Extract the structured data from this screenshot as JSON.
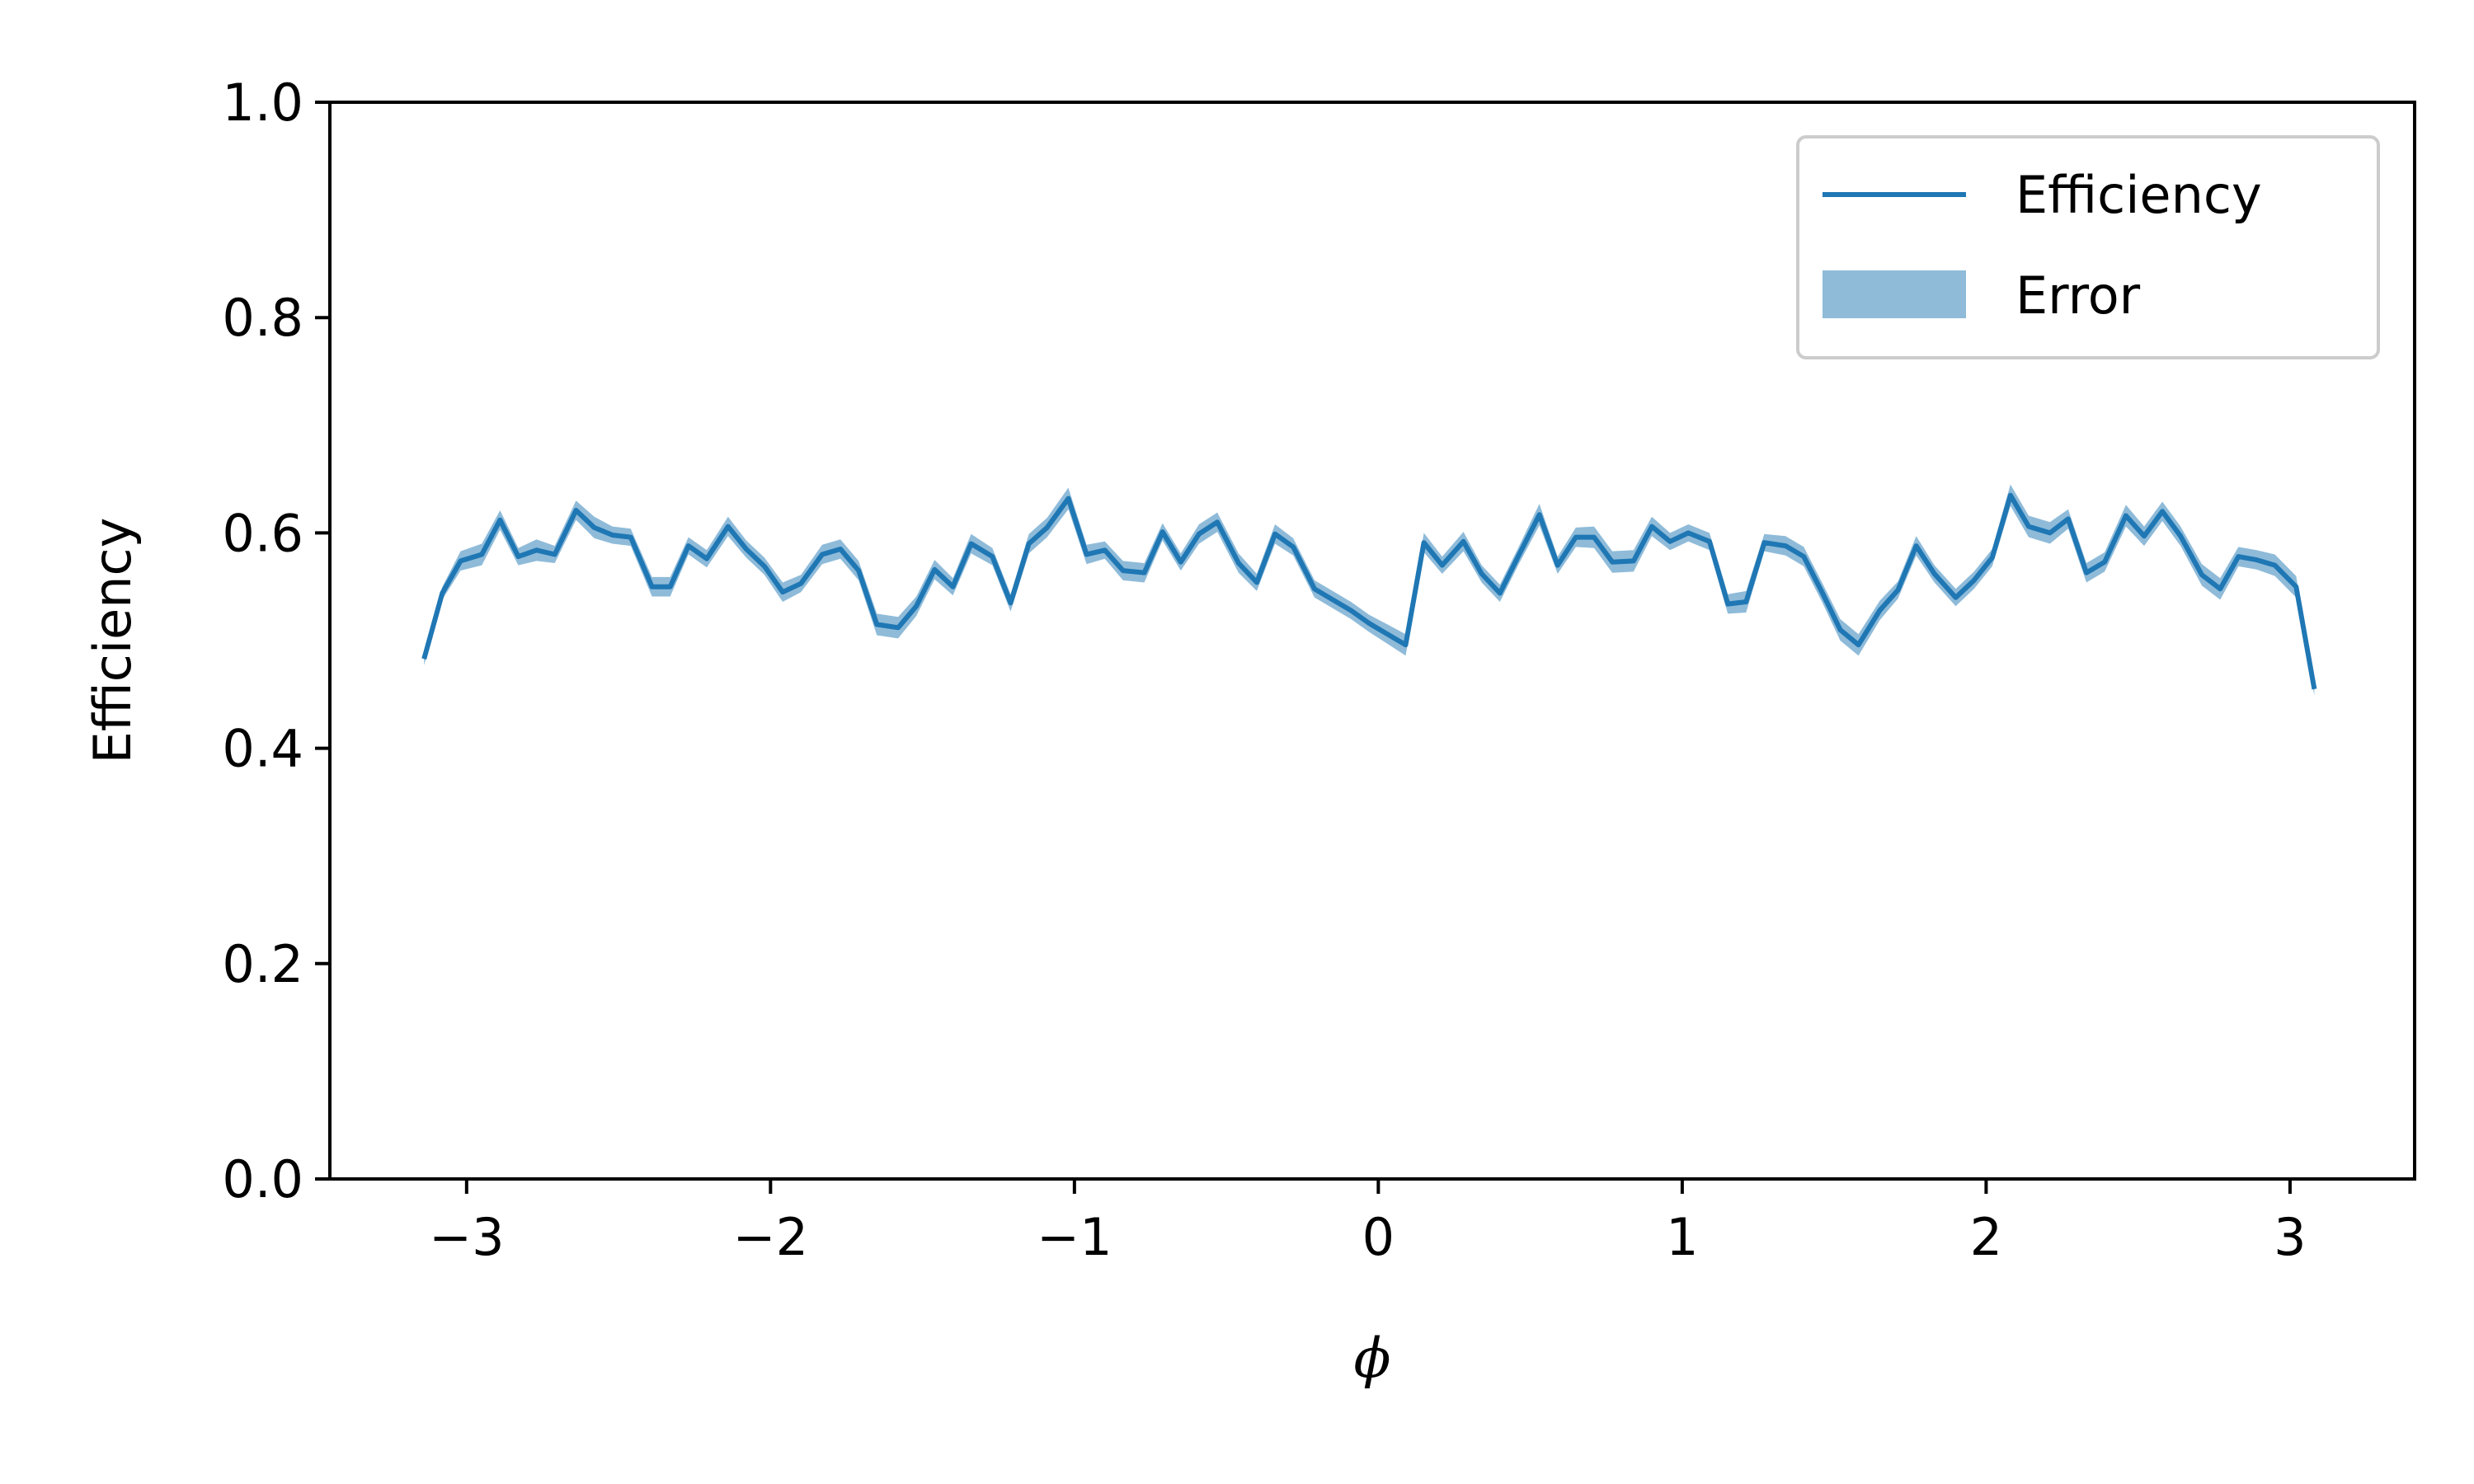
{
  "chart_data": {
    "type": "line",
    "title": "",
    "xlabel": "ϕ",
    "ylabel": "Efficiency",
    "xlim": [
      -3.45,
      3.41
    ],
    "ylim": [
      0.0,
      1.0
    ],
    "x_ticks": [
      -3,
      -2,
      -1,
      0,
      1,
      2,
      3
    ],
    "x_tick_labels": [
      "−3",
      "−2",
      "−1",
      "0",
      "1",
      "2",
      "3"
    ],
    "y_ticks": [
      0.0,
      0.2,
      0.4,
      0.6,
      0.8,
      1.0
    ],
    "y_tick_labels": [
      "0.0",
      "0.2",
      "0.4",
      "0.6",
      "0.8",
      "1.0"
    ],
    "grid": false,
    "legend": {
      "location": "top-right",
      "entries": [
        "Efficiency",
        "Error"
      ]
    },
    "colors": {
      "line": "#1f77b4",
      "band": "#1f77b4",
      "axes": "#000000",
      "legend_border": "#cccccc"
    },
    "series": [
      {
        "name": "Efficiency",
        "x": [
          -3.14,
          -3.08,
          -3.02,
          -2.95,
          -2.89,
          -2.83,
          -2.77,
          -2.71,
          -2.64,
          -2.58,
          -2.52,
          -2.46,
          -2.39,
          -2.33,
          -2.27,
          -2.21,
          -2.14,
          -2.08,
          -2.02,
          -1.96,
          -1.9,
          -1.83,
          -1.77,
          -1.71,
          -1.65,
          -1.58,
          -1.52,
          -1.46,
          -1.4,
          -1.34,
          -1.27,
          -1.21,
          -1.15,
          -1.09,
          -1.02,
          -0.96,
          -0.9,
          -0.84,
          -0.77,
          -0.71,
          -0.65,
          -0.59,
          -0.53,
          -0.46,
          -0.4,
          -0.34,
          -0.28,
          -0.21,
          -0.15,
          -0.09,
          -0.03,
          0.03,
          0.09,
          0.15,
          0.21,
          0.28,
          0.34,
          0.4,
          0.46,
          0.53,
          0.59,
          0.65,
          0.71,
          0.77,
          0.84,
          0.9,
          0.96,
          1.02,
          1.09,
          1.15,
          1.21,
          1.27,
          1.34,
          1.4,
          1.46,
          1.52,
          1.58,
          1.65,
          1.71,
          1.77,
          1.83,
          1.9,
          1.96,
          2.02,
          2.08,
          2.14,
          2.21,
          2.27,
          2.33,
          2.39,
          2.46,
          2.52,
          2.58,
          2.64,
          2.71,
          2.77,
          2.83,
          2.89,
          2.95,
          3.02,
          3.08
        ],
        "y": [
          0.483,
          0.544,
          0.574,
          0.58,
          0.612,
          0.578,
          0.584,
          0.58,
          0.621,
          0.605,
          0.598,
          0.596,
          0.55,
          0.55,
          0.588,
          0.576,
          0.606,
          0.585,
          0.569,
          0.545,
          0.553,
          0.58,
          0.585,
          0.565,
          0.515,
          0.512,
          0.532,
          0.566,
          0.55,
          0.59,
          0.578,
          0.535,
          0.59,
          0.605,
          0.632,
          0.58,
          0.584,
          0.565,
          0.563,
          0.601,
          0.573,
          0.599,
          0.61,
          0.572,
          0.554,
          0.599,
          0.587,
          0.548,
          0.538,
          0.528,
          0.516,
          0.506,
          0.496,
          0.591,
          0.57,
          0.592,
          0.562,
          0.544,
          0.578,
          0.617,
          0.57,
          0.596,
          0.596,
          0.573,
          0.574,
          0.606,
          0.592,
          0.6,
          0.592,
          0.534,
          0.536,
          0.591,
          0.588,
          0.578,
          0.545,
          0.51,
          0.496,
          0.528,
          0.547,
          0.588,
          0.562,
          0.54,
          0.556,
          0.577,
          0.635,
          0.606,
          0.6,
          0.613,
          0.563,
          0.573,
          0.616,
          0.597,
          0.62,
          0.597,
          0.561,
          0.548,
          0.578,
          0.575,
          0.57,
          0.55,
          0.455
        ]
      },
      {
        "name": "Error",
        "band_halfwidth": [
          0.006,
          0.006,
          0.009,
          0.01,
          0.009,
          0.008,
          0.01,
          0.008,
          0.009,
          0.01,
          0.008,
          0.008,
          0.009,
          0.009,
          0.008,
          0.008,
          0.009,
          0.008,
          0.008,
          0.009,
          0.008,
          0.009,
          0.009,
          0.009,
          0.01,
          0.01,
          0.009,
          0.009,
          0.008,
          0.009,
          0.008,
          0.008,
          0.009,
          0.009,
          0.01,
          0.009,
          0.008,
          0.009,
          0.009,
          0.008,
          0.008,
          0.009,
          0.009,
          0.009,
          0.008,
          0.009,
          0.008,
          0.008,
          0.008,
          0.008,
          0.008,
          0.009,
          0.01,
          0.009,
          0.008,
          0.009,
          0.008,
          0.008,
          0.008,
          0.01,
          0.008,
          0.009,
          0.01,
          0.01,
          0.01,
          0.009,
          0.008,
          0.008,
          0.008,
          0.009,
          0.01,
          0.008,
          0.009,
          0.009,
          0.009,
          0.01,
          0.01,
          0.009,
          0.008,
          0.009,
          0.008,
          0.008,
          0.008,
          0.008,
          0.01,
          0.01,
          0.01,
          0.009,
          0.009,
          0.009,
          0.01,
          0.009,
          0.009,
          0.009,
          0.01,
          0.01,
          0.009,
          0.009,
          0.01,
          0.01,
          0.006
        ]
      }
    ]
  }
}
